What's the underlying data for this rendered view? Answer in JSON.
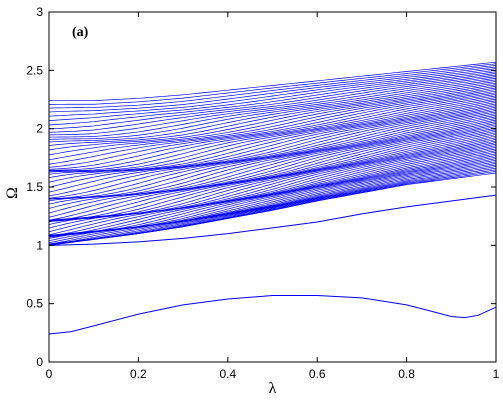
{
  "chart_data": {
    "type": "line",
    "title": "",
    "annotation": "(a)",
    "xlabel": "λ",
    "ylabel": "Ω",
    "xlim": [
      0,
      1
    ],
    "ylim": [
      0,
      3
    ],
    "xticks": [
      0,
      0.2,
      0.4,
      0.6,
      0.8,
      1
    ],
    "xtick_labels": [
      "0",
      "0.2",
      "0.4",
      "0.6",
      "0.8",
      "1"
    ],
    "yticks": [
      0,
      0.5,
      1,
      1.5,
      2,
      2.5,
      3
    ],
    "ytick_labels": [
      "0",
      "0.5",
      "1",
      "1.5",
      "2",
      "2.5",
      "3"
    ],
    "grid": false,
    "line_color": "#0000ff",
    "band_line_count": 70,
    "band_upper": {
      "x": [
        0,
        0.1,
        0.2,
        0.3,
        0.4,
        0.5,
        0.6,
        0.7,
        0.8,
        0.9,
        1.0
      ],
      "y": [
        2.24,
        2.24,
        2.26,
        2.29,
        2.33,
        2.37,
        2.41,
        2.45,
        2.49,
        2.53,
        2.57
      ]
    },
    "band_lower": {
      "x": [
        0,
        0.1,
        0.2,
        0.3,
        0.4,
        0.5,
        0.6,
        0.7,
        0.8,
        0.9,
        1.0
      ],
      "y": [
        1.0,
        1.05,
        1.1,
        1.16,
        1.23,
        1.3,
        1.38,
        1.45,
        1.52,
        1.57,
        1.62
      ]
    },
    "series": [
      {
        "x": [
          0,
          0.1,
          0.2,
          0.3,
          0.4,
          0.5,
          0.6,
          0.7,
          0.8,
          0.9,
          1.0
        ],
        "y": [
          1.0,
          1.01,
          1.03,
          1.06,
          1.1,
          1.15,
          1.2,
          1.27,
          1.33,
          1.38,
          1.43
        ]
      },
      {
        "x": [
          0,
          0.05,
          0.1,
          0.2,
          0.3,
          0.4,
          0.5,
          0.55,
          0.6,
          0.7,
          0.8,
          0.85,
          0.9,
          0.93,
          0.96,
          1.0
        ],
        "y": [
          0.24,
          0.26,
          0.31,
          0.41,
          0.49,
          0.54,
          0.57,
          0.57,
          0.57,
          0.55,
          0.49,
          0.44,
          0.39,
          0.38,
          0.4,
          0.47
        ]
      }
    ]
  }
}
